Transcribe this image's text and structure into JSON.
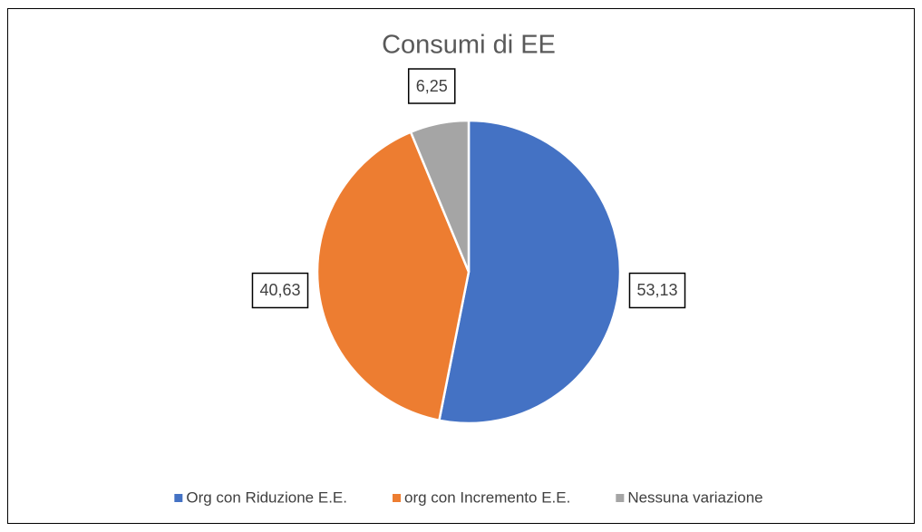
{
  "chart_data": {
    "type": "pie",
    "title": "Consumi di EE",
    "categories": [
      "Org con Riduzione E.E.",
      "org con Incremento E.E.",
      "Nessuna variazione"
    ],
    "values": [
      53.13,
      40.63,
      6.25
    ],
    "value_labels": [
      "53,13",
      "40,63",
      "6,25"
    ],
    "colors": [
      "#4472c4",
      "#ed7d31",
      "#a5a5a5"
    ],
    "legend": "bottom"
  }
}
